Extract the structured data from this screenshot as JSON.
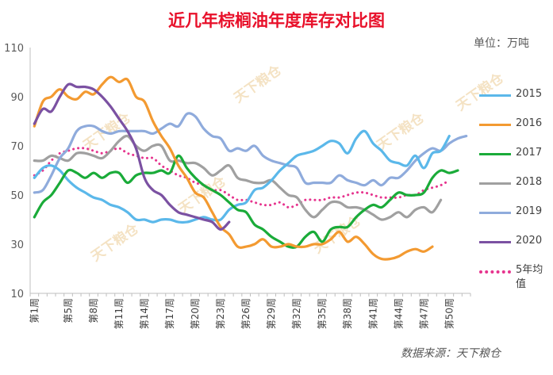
{
  "title": "近几年棕榈油年度库存对比图",
  "unit": "单位：万吨",
  "source": "数据来源：天下粮仓",
  "watermark": "天下粮仓",
  "chart_data": {
    "type": "line",
    "title": "近几年棕榈油年度库存对比图",
    "ylabel": "单位：万吨",
    "ylim": [
      10,
      110
    ],
    "yticks": [
      10,
      30,
      50,
      70,
      90,
      110
    ],
    "grid": false,
    "legend_position": "right",
    "x_count": 52,
    "x_tick_labels": [
      {
        "week": 1,
        "label": "第1周"
      },
      {
        "week": 5,
        "label": "第5周"
      },
      {
        "week": 8,
        "label": "第8周"
      },
      {
        "week": 11,
        "label": "第11周"
      },
      {
        "week": 14,
        "label": "第14周"
      },
      {
        "week": 17,
        "label": "第17周"
      },
      {
        "week": 20,
        "label": "第20周"
      },
      {
        "week": 23,
        "label": "第23周"
      },
      {
        "week": 26,
        "label": "第26周"
      },
      {
        "week": 29,
        "label": "第29周"
      },
      {
        "week": 32,
        "label": "第32周"
      },
      {
        "week": 35,
        "label": "第35周"
      },
      {
        "week": 38,
        "label": "第38周"
      },
      {
        "week": 41,
        "label": "第41周"
      },
      {
        "week": 44,
        "label": "第44周"
      },
      {
        "week": 47,
        "label": "第47周"
      },
      {
        "week": 50,
        "label": "第50周"
      }
    ],
    "series": [
      {
        "name": "2015",
        "color": "#5bb8ea",
        "dash": false,
        "values": [
          57,
          61,
          62,
          60,
          56,
          53,
          51,
          49,
          48,
          46,
          45,
          43,
          40,
          40,
          39,
          40,
          40,
          39,
          39,
          40,
          41,
          40,
          40,
          44,
          46,
          47,
          52,
          53,
          56,
          60,
          63,
          66,
          67,
          68,
          70,
          72,
          71,
          67,
          73,
          76,
          71,
          68,
          64,
          63,
          62,
          66,
          61,
          67,
          68,
          74
        ]
      },
      {
        "name": "2016",
        "color": "#f39a31",
        "dash": false,
        "values": [
          78,
          88,
          90,
          93,
          90,
          89,
          92,
          91,
          95,
          98,
          96,
          97,
          90,
          88,
          80,
          74,
          69,
          62,
          57,
          51,
          49,
          43,
          37,
          34,
          29,
          29,
          30,
          32,
          29,
          29,
          30,
          29,
          29,
          30,
          30,
          32,
          35,
          31,
          33,
          30,
          26,
          24,
          24,
          25,
          27,
          28,
          27,
          29
        ]
      },
      {
        "name": "2017",
        "color": "#1aab39",
        "dash": false,
        "values": [
          41,
          47,
          50,
          55,
          60,
          59,
          57,
          59,
          57,
          59,
          59,
          55,
          58,
          59,
          59,
          60,
          59,
          66,
          61,
          57,
          54,
          52,
          50,
          47,
          44,
          43,
          38,
          36,
          33,
          31,
          29,
          29,
          33,
          35,
          31,
          36,
          37,
          37,
          41,
          44,
          46,
          45,
          48,
          51,
          50,
          50,
          51,
          57,
          60,
          59,
          60
        ]
      },
      {
        "name": "2018",
        "color": "#a0a0a0",
        "dash": false,
        "values": [
          64,
          64,
          66,
          65,
          64,
          67,
          67,
          66,
          65,
          68,
          72,
          74,
          70,
          68,
          70,
          70,
          64,
          64,
          63,
          63,
          61,
          58,
          60,
          62,
          57,
          56,
          55,
          55,
          56,
          53,
          50,
          49,
          44,
          41,
          44,
          47,
          47,
          45,
          45,
          44,
          42,
          40,
          41,
          43,
          41,
          44,
          45,
          43,
          48
        ]
      },
      {
        "name": "2019",
        "color": "#8fabdc",
        "dash": false,
        "values": [
          51,
          52,
          58,
          65,
          69,
          76,
          78,
          78,
          76,
          75,
          76,
          76,
          76,
          76,
          75,
          77,
          79,
          78,
          83,
          82,
          77,
          74,
          73,
          68,
          69,
          68,
          70,
          66,
          64,
          63,
          62,
          61,
          55,
          55,
          55,
          55,
          58,
          56,
          55,
          54,
          56,
          54,
          57,
          57,
          60,
          64,
          67,
          69,
          68,
          71,
          73,
          74
        ]
      },
      {
        "name": "2020",
        "color": "#7b51a2",
        "dash": false,
        "values": [
          79,
          85,
          84,
          90,
          95,
          94,
          94,
          93,
          90,
          86,
          81,
          76,
          69,
          57,
          52,
          50,
          46,
          43,
          42,
          41,
          40,
          39,
          36,
          39
        ]
      },
      {
        "name": "5年均值",
        "color": "#e6348e",
        "dash": true,
        "values": [
          58,
          60,
          64,
          67,
          68,
          69,
          69,
          68,
          67,
          68,
          69,
          67,
          66,
          65,
          65,
          62,
          60,
          58,
          57,
          55,
          54,
          52,
          52,
          50,
          48,
          48,
          47,
          46,
          46,
          47,
          45,
          46,
          48,
          48,
          48,
          49,
          49,
          50,
          51,
          51,
          50,
          49,
          49,
          49,
          50,
          50,
          52,
          53,
          54,
          56
        ]
      }
    ]
  }
}
